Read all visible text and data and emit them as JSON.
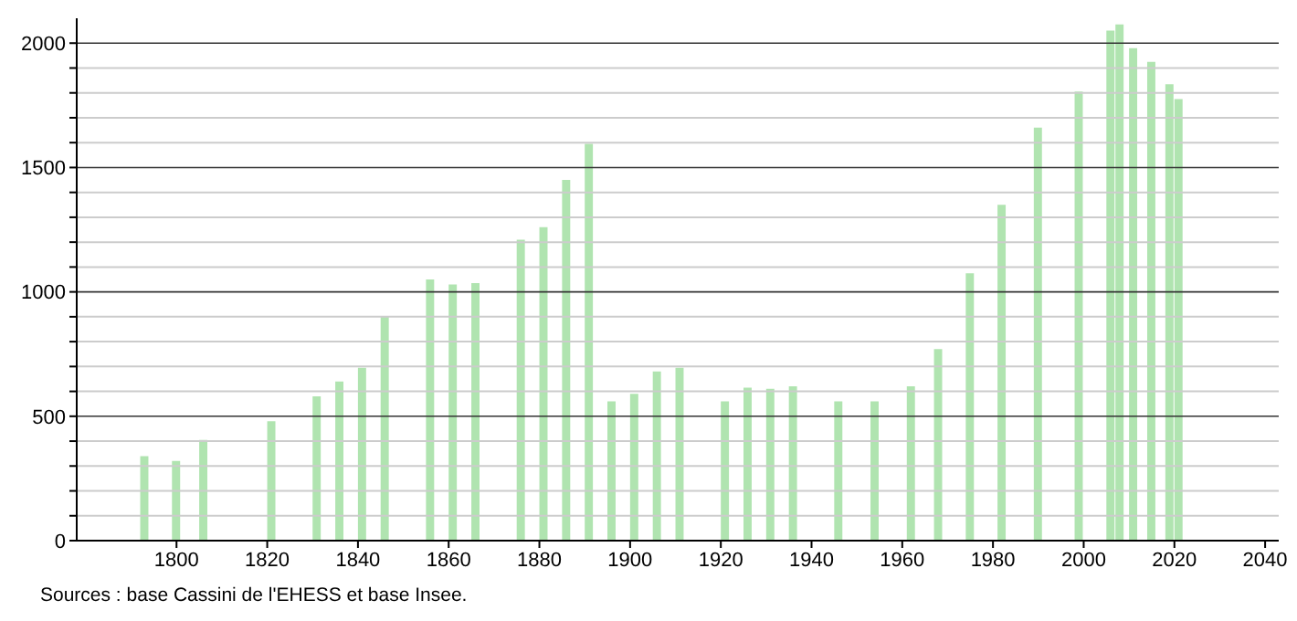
{
  "chart_data": {
    "type": "bar",
    "x": [
      1793,
      1800,
      1806,
      1821,
      1831,
      1836,
      1841,
      1846,
      1856,
      1861,
      1866,
      1876,
      1881,
      1886,
      1891,
      1896,
      1901,
      1906,
      1911,
      1921,
      1926,
      1931,
      1936,
      1946,
      1954,
      1962,
      1968,
      1975,
      1982,
      1990,
      1999,
      2006,
      2008,
      2011,
      2015,
      2019,
      2021
    ],
    "values": [
      340,
      320,
      405,
      480,
      580,
      640,
      695,
      900,
      1050,
      1030,
      1035,
      1210,
      1260,
      1450,
      1595,
      560,
      590,
      680,
      695,
      560,
      615,
      610,
      620,
      560,
      560,
      620,
      770,
      1075,
      1350,
      1660,
      1805,
      2050,
      2075,
      1980,
      1925,
      1835,
      1775
    ],
    "color": "#b0e4b0",
    "xlim": [
      1778,
      2043
    ],
    "xticks": [
      1800,
      1820,
      1840,
      1860,
      1880,
      1900,
      1920,
      1940,
      1960,
      1980,
      2000,
      2020,
      2040
    ],
    "ylim": [
      0,
      2100
    ],
    "yticks": [
      0,
      {
        "value": 100,
        "label": null
      },
      {
        "value": 200,
        "label": null
      },
      {
        "value": 300,
        "label": null
      },
      {
        "value": 400,
        "label": null
      },
      500,
      {
        "value": 600,
        "label": null
      },
      {
        "value": 700,
        "label": null
      },
      {
        "value": 800,
        "label": null
      },
      {
        "value": 900,
        "label": null
      },
      1000,
      {
        "value": 1100,
        "label": null
      },
      {
        "value": 1200,
        "label": null
      },
      {
        "value": 1300,
        "label": null
      },
      {
        "value": 1400,
        "label": null
      },
      1500,
      {
        "value": 1600,
        "label": null
      },
      {
        "value": 1700,
        "label": null
      },
      {
        "value": 1800,
        "label": null
      },
      {
        "value": 1900,
        "label": null
      },
      2000
    ],
    "grid": "y",
    "annotations": [
      "Sources : base Cassini de l'EHESS et base Insee."
    ]
  }
}
